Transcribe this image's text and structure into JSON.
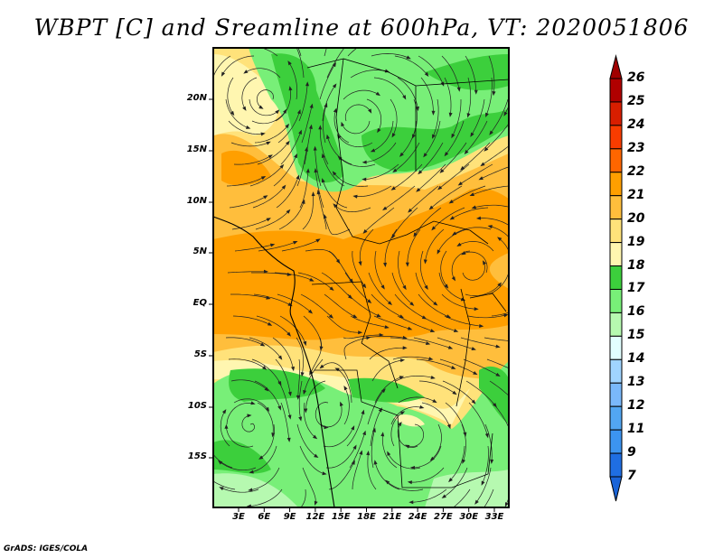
{
  "title": "WBPT [C] and Sreamline at 600hPa, VT: 2020051806",
  "credit": "GrADS: IGES/COLA",
  "map": {
    "lat_labels": [
      "20N",
      "15N",
      "10N",
      "5N",
      "EQ",
      "5S",
      "10S",
      "15S"
    ],
    "lon_labels": [
      "3E",
      "6E",
      "9E",
      "12E",
      "15E",
      "18E",
      "21E",
      "24E",
      "27E",
      "30E",
      "33E"
    ]
  },
  "colorbar": {
    "labels": [
      "26",
      "25",
      "24",
      "23",
      "22",
      "21",
      "20",
      "19",
      "18",
      "17",
      "16",
      "15",
      "14",
      "13",
      "12",
      "11",
      "9",
      "7"
    ],
    "colors": [
      "#b00000",
      "#d81e00",
      "#f83c00",
      "#ff6600",
      "#ff9f00",
      "#ffbe3c",
      "#ffe27a",
      "#fff6b0",
      "#3ccf3c",
      "#78ef78",
      "#b6f9b0",
      "#e2ffff",
      "#a0d4ff",
      "#7ab8fa",
      "#52a6f2",
      "#3c94f0",
      "#1f6ee2"
    ],
    "top_arrow_color": "#a00000",
    "bottom_arrow_color": "#1a64d8"
  }
}
